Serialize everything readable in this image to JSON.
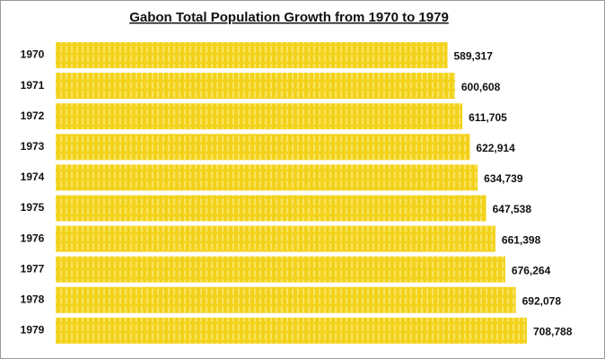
{
  "chart_data": {
    "type": "bar",
    "orientation": "horizontal",
    "title": "Gabon Total Population Growth from 1970 to 1979",
    "categories": [
      "1970",
      "1971",
      "1972",
      "1973",
      "1974",
      "1975",
      "1976",
      "1977",
      "1978",
      "1979"
    ],
    "values": [
      589317,
      600608,
      611705,
      622914,
      634739,
      647538,
      661398,
      676264,
      692078,
      708788
    ],
    "value_labels": [
      "589,317",
      "600,608",
      "611,705",
      "622,914",
      "634,739",
      "647,538",
      "661,398",
      "676,264",
      "692,078",
      "708,788"
    ],
    "color": "#f2d21b"
  }
}
